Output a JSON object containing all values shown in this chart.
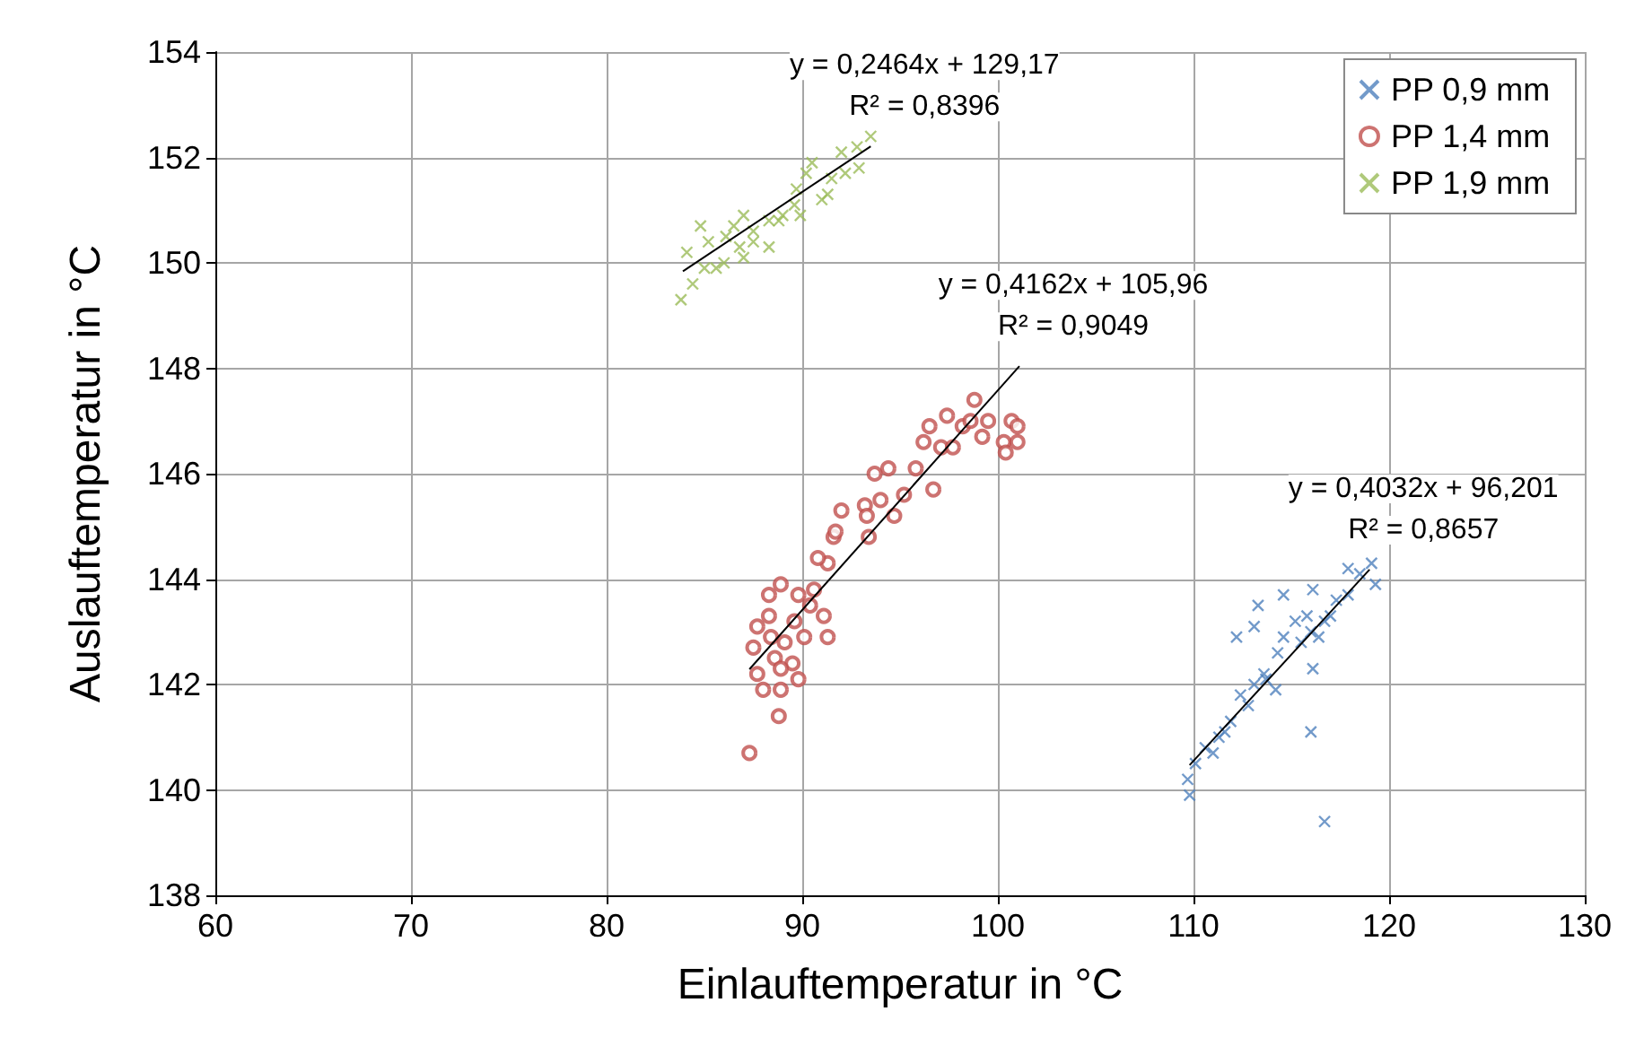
{
  "chart_data": {
    "type": "scatter",
    "xlabel": "Einlauftemperatur in °C",
    "ylabel": "Auslauftemperatur in °C",
    "xlim": [
      60,
      130
    ],
    "xticks": [
      60,
      70,
      80,
      90,
      100,
      110,
      120,
      130
    ],
    "ylim": [
      138,
      154
    ],
    "yticks": [
      138,
      140,
      142,
      144,
      146,
      148,
      150,
      152,
      154
    ],
    "grid": true,
    "legend": "top right",
    "series": [
      {
        "name": "PP 0,9 mm",
        "color": "#4f81bd",
        "marker": "cross",
        "x": [
          109.8,
          109.7,
          110.1,
          110.6,
          111.3,
          111.9,
          112.4,
          113.1,
          113.7,
          114.2,
          113.6,
          114.3,
          114.6,
          115.2,
          115.8,
          116.0,
          116.4,
          116.1,
          117.0,
          117.3,
          117.9,
          118.5,
          119.1,
          119.3,
          117.9,
          116.1,
          114.6,
          113.3,
          113.1,
          112.2,
          116.0,
          116.7,
          111.0,
          111.6,
          112.8,
          115.5,
          116.7
        ],
        "values": [
          139.9,
          140.2,
          140.5,
          140.8,
          141.0,
          141.3,
          141.8,
          142.0,
          142.1,
          141.9,
          142.2,
          142.6,
          142.9,
          143.2,
          143.3,
          143.0,
          142.9,
          142.3,
          143.3,
          143.6,
          143.7,
          144.1,
          144.3,
          143.9,
          144.2,
          143.8,
          143.7,
          143.5,
          143.1,
          142.9,
          141.1,
          139.4,
          140.7,
          141.1,
          141.6,
          142.8,
          143.2
        ]
      },
      {
        "name": "PP 1,4 mm",
        "color": "#c0504d",
        "marker": "circle",
        "x": [
          88.8,
          88.9,
          88.0,
          87.7,
          87.5,
          87.7,
          88.3,
          88.9,
          88.3,
          88.6,
          89.5,
          90.1,
          91.3,
          91.1,
          89.8,
          90.4,
          90.6,
          91.3,
          90.8,
          91.6,
          91.7,
          93.4,
          92.0,
          93.2,
          93.3,
          94.0,
          94.7,
          93.7,
          94.4,
          95.2,
          95.8,
          96.7,
          96.2,
          97.1,
          97.7,
          96.5,
          97.4,
          98.2,
          98.8,
          98.6,
          99.5,
          99.2,
          100.7,
          101.0,
          100.3,
          101.0,
          100.4,
          87.3,
          89.1,
          89.6,
          88.9,
          89.8,
          88.4
        ],
        "values": [
          141.4,
          141.9,
          141.9,
          142.2,
          142.7,
          143.1,
          143.3,
          143.9,
          143.7,
          142.5,
          142.4,
          142.9,
          142.9,
          143.3,
          143.7,
          143.5,
          143.8,
          144.3,
          144.4,
          144.8,
          144.9,
          144.8,
          145.3,
          145.4,
          145.2,
          145.5,
          145.2,
          146.0,
          146.1,
          145.6,
          146.1,
          145.7,
          146.6,
          146.5,
          146.5,
          146.9,
          147.1,
          146.9,
          147.4,
          147.0,
          147.0,
          146.7,
          147.0,
          146.9,
          146.6,
          146.6,
          146.4,
          140.7,
          142.8,
          143.2,
          142.3,
          142.1,
          142.9
        ]
      },
      {
        "name": "PP 1,9 mm",
        "color": "#9bbb59",
        "marker": "cross",
        "x": [
          83.8,
          84.4,
          84.1,
          84.8,
          85.0,
          85.6,
          85.2,
          86.1,
          86.5,
          87.0,
          86.8,
          87.5,
          88.3,
          88.3,
          88.8,
          89.6,
          89.9,
          89.7,
          90.2,
          90.5,
          91.0,
          91.3,
          91.5,
          92.2,
          92.0,
          92.8,
          92.9,
          93.5,
          86.0,
          87.0,
          87.5,
          89.0
        ],
        "values": [
          149.3,
          149.6,
          150.2,
          150.7,
          149.9,
          149.9,
          150.4,
          150.5,
          150.7,
          150.9,
          150.3,
          150.4,
          150.3,
          150.8,
          150.8,
          151.1,
          150.9,
          151.4,
          151.7,
          151.9,
          151.2,
          151.3,
          151.6,
          151.7,
          152.1,
          152.2,
          151.8,
          152.4,
          150.0,
          150.1,
          150.6,
          150.9
        ]
      },
      {
        "type": "line",
        "color": "#000000",
        "marker": "none",
        "x": [
          83.9,
          93.5
        ],
        "values": [
          149.84,
          152.21
        ]
      },
      {
        "type": "line",
        "color": "#000000",
        "marker": "none",
        "x": [
          87.3,
          101.1
        ],
        "values": [
          142.29,
          148.04
        ]
      },
      {
        "type": "line",
        "color": "#000000",
        "marker": "none",
        "x": [
          109.8,
          119.0
        ],
        "values": [
          140.47,
          144.18
        ]
      }
    ],
    "annotations": [
      "y = 0,2464x + 129,17",
      "R² = 0,8396",
      "y = 0,4162x + 105,96",
      "R² = 0,9049",
      "y = 0,4032x + 96,201",
      "R² = 0,8657"
    ]
  }
}
